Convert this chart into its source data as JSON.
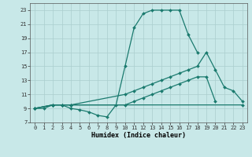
{
  "xlabel": "Humidex (Indice chaleur)",
  "xlim": [
    -0.5,
    23.5
  ],
  "ylim": [
    7,
    24
  ],
  "yticks": [
    7,
    9,
    11,
    13,
    15,
    17,
    19,
    21,
    23
  ],
  "xticks": [
    0,
    1,
    2,
    3,
    4,
    5,
    6,
    7,
    8,
    9,
    10,
    11,
    12,
    13,
    14,
    15,
    16,
    17,
    18,
    19,
    20,
    21,
    22,
    23
  ],
  "background_color": "#c8e8e8",
  "grid_color": "#aacece",
  "line_color": "#1a7a6e",
  "line1_x": [
    0,
    1,
    2,
    3,
    4,
    5,
    6,
    7,
    8,
    9,
    10,
    11,
    12,
    13,
    14,
    15,
    16,
    17,
    18
  ],
  "line1_y": [
    9,
    9,
    9.5,
    9.5,
    9.0,
    8.8,
    8.5,
    8.0,
    7.8,
    9.5,
    15,
    20.5,
    22.5,
    23,
    23,
    23,
    23,
    19.5,
    17
  ],
  "line2_x": [
    0,
    2,
    3,
    4,
    10,
    11,
    12,
    13,
    14,
    15,
    16,
    17,
    18,
    19,
    20,
    21,
    22,
    23
  ],
  "line2_y": [
    9,
    9.5,
    9.5,
    9.5,
    11,
    11.5,
    12,
    12.5,
    13,
    13.5,
    14,
    14.5,
    15,
    17,
    14.5,
    12,
    11.5,
    10
  ],
  "line3_x": [
    0,
    2,
    3,
    4,
    10,
    11,
    12,
    13,
    14,
    15,
    16,
    17,
    18,
    19,
    20
  ],
  "line3_y": [
    9,
    9.5,
    9.5,
    9.5,
    9.5,
    10,
    10.5,
    11,
    11.5,
    12,
    12.5,
    13,
    13.5,
    13.5,
    10
  ],
  "line4_x": [
    0,
    2,
    3,
    4,
    23
  ],
  "line4_y": [
    9,
    9.5,
    9.5,
    9.5,
    9.5
  ],
  "lw": 0.9,
  "ms": 2.0,
  "xlabel_fontsize": 6.0,
  "tick_fontsize": 5.0
}
